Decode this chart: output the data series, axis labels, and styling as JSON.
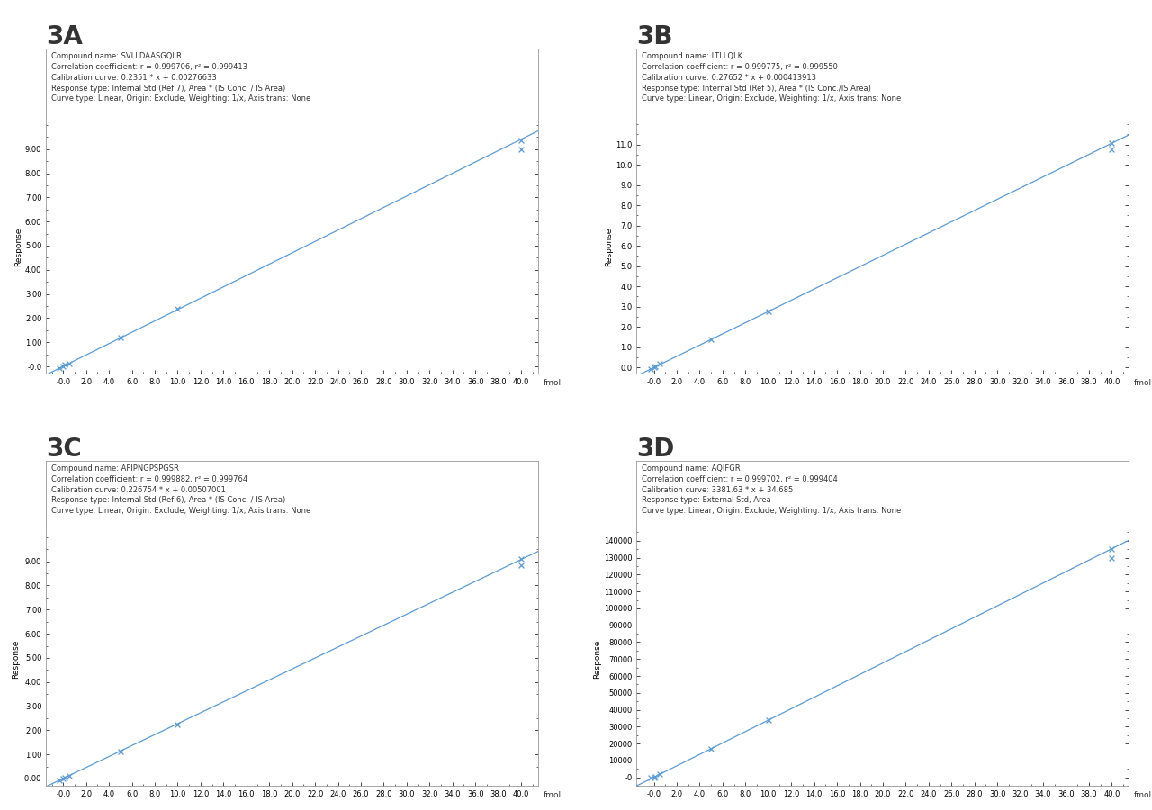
{
  "panels": [
    {
      "label": "3A",
      "compound_name": "SVLLDAASGQLR",
      "r": "0.999706",
      "r2": "0.999413",
      "cal_curve": "0.2351 * x + 0.00276633",
      "slope": 0.2351,
      "intercept": 0.00276633,
      "response_type": "Internal Std (Ref 7), Area * (IS Conc. / IS Area)",
      "curve_type": "Linear, Origin: Exclude, Weighting: 1/x, Axis trans: None",
      "ylim": [
        -0.3,
        10.2
      ],
      "yticks": [
        -0.0,
        1.0,
        2.0,
        3.0,
        4.0,
        5.0,
        6.0,
        7.0,
        8.0,
        9.0
      ],
      "ytick_labels": [
        "-0.0",
        "1.00",
        "2.00",
        "3.00",
        "4.00",
        "5.00",
        "6.00",
        "7.00",
        "8.00",
        "9.00"
      ],
      "scatter_x": [
        -0.3,
        0.0,
        0.12,
        0.5,
        5.0,
        10.0,
        40.0,
        40.0
      ],
      "scatter_y": [
        -0.06,
        0.0,
        0.06,
        0.12,
        1.2,
        2.38,
        9.35,
        8.98
      ]
    },
    {
      "label": "3B",
      "compound_name": "LTLLQLK",
      "r": "0.999775",
      "r2": "0.999550",
      "cal_curve": "0.27652 * x + 0.000413913",
      "slope": 0.27652,
      "intercept": 0.000413913,
      "response_type": "Internal Std (Ref 5), Area * (IS Conc./IS Area)",
      "curve_type": "Linear, Origin: Exclude, Weighting: 1/x, Axis trans: None",
      "ylim": [
        -0.3,
        12.2
      ],
      "yticks": [
        0.0,
        1.0,
        2.0,
        3.0,
        4.0,
        5.0,
        6.0,
        7.0,
        8.0,
        9.0,
        10.0,
        11.0
      ],
      "ytick_labels": [
        "0.0",
        "1.0",
        "2.0",
        "3.0",
        "4.0",
        "5.0",
        "6.0",
        "7.0",
        "8.0",
        "9.0",
        "10.0",
        "11.0"
      ],
      "scatter_x": [
        -0.3,
        0.0,
        0.12,
        0.5,
        5.0,
        10.0,
        40.0,
        40.0
      ],
      "scatter_y": [
        -0.06,
        0.02,
        0.08,
        0.2,
        1.38,
        2.75,
        11.05,
        10.75
      ]
    },
    {
      "label": "3C",
      "compound_name": "AFIPNGPSPGSR",
      "r": "0.999882",
      "r2": "0.999764",
      "cal_curve": "0.226754 * x + 0.00507001",
      "slope": 0.226754,
      "intercept": 0.00507001,
      "response_type": "Internal Std (Ref 6), Area * (IS Conc. / IS Area)",
      "curve_type": "Linear, Origin: Exclude, Weighting: 1/x, Axis trans: None",
      "ylim": [
        -0.3,
        10.2
      ],
      "yticks": [
        -0.0,
        1.0,
        2.0,
        3.0,
        4.0,
        5.0,
        6.0,
        7.0,
        8.0,
        9.0
      ],
      "ytick_labels": [
        "-0.00",
        "1.00",
        "2.00",
        "3.00",
        "4.00",
        "5.00",
        "6.00",
        "7.00",
        "8.00",
        "9.00"
      ],
      "scatter_x": [
        -0.3,
        0.0,
        0.12,
        0.5,
        5.0,
        10.0,
        40.0,
        40.0
      ],
      "scatter_y": [
        -0.06,
        0.0,
        0.04,
        0.1,
        1.12,
        2.23,
        9.1,
        8.85
      ]
    },
    {
      "label": "3D",
      "compound_name": "AQIFGR",
      "r": "0.999702",
      "r2": "0.999404",
      "cal_curve": "3381.63 * x + 34.685",
      "slope": 3381.63,
      "intercept": 34.685,
      "response_type": "External Std, Area",
      "curve_type": "Linear, Origin: Exclude, Weighting: 1/x, Axis trans: None",
      "ylim": [
        -5000,
        145000
      ],
      "yticks": [
        0,
        10000,
        20000,
        30000,
        40000,
        50000,
        60000,
        70000,
        80000,
        90000,
        100000,
        110000,
        120000,
        130000,
        140000
      ],
      "ytick_labels": [
        "-0",
        "10000",
        "20000",
        "30000",
        "40000",
        "50000",
        "60000",
        "70000",
        "80000",
        "90000",
        "100000",
        "110000",
        "120000",
        "130000",
        "140000"
      ],
      "scatter_x": [
        -0.3,
        0.0,
        0.12,
        0.5,
        5.0,
        10.0,
        40.0,
        40.0
      ],
      "scatter_y": [
        -300,
        50,
        400,
        1700,
        17000,
        33900,
        135000,
        130000
      ]
    }
  ],
  "xlim": [
    -1.5,
    41.5
  ],
  "xticks": [
    0,
    2,
    4,
    6,
    8,
    10,
    12,
    14,
    16,
    18,
    20,
    22,
    24,
    26,
    28,
    30,
    32,
    34,
    36,
    38,
    40
  ],
  "xtick_labels": [
    "-0.0",
    "2.0",
    "4.0",
    "6.0",
    "8.0",
    "10.0",
    "12.0",
    "14.0",
    "16.0",
    "18.0",
    "20.0",
    "22.0",
    "24.0",
    "26.0",
    "28.0",
    "30.0",
    "32.0",
    "34.0",
    "36.0",
    "38.0",
    "40.0"
  ],
  "xlabel": "fmol",
  "ylabel": "Response",
  "line_color": "#5b9bd5",
  "marker_color": "#5b9bd5",
  "bg_color": "#ffffff",
  "text_color": "#333333",
  "info_fontsize": 6.0,
  "label_fontsize": 20,
  "axis_tick_fontsize": 6,
  "ylabel_fontsize": 6.5,
  "xlabel_fontsize": 6.5
}
